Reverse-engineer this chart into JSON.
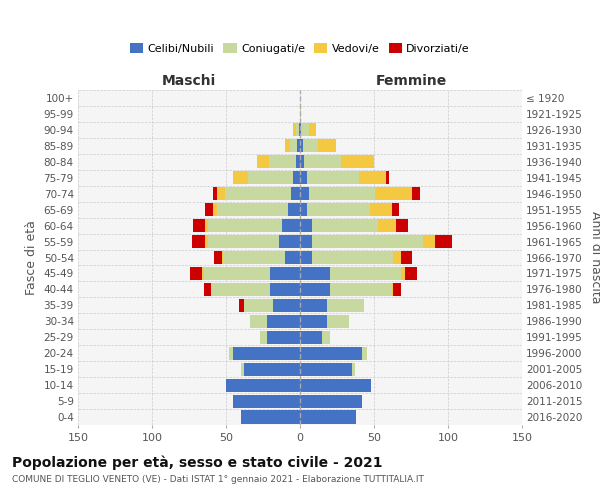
{
  "age_groups": [
    "0-4",
    "5-9",
    "10-14",
    "15-19",
    "20-24",
    "25-29",
    "30-34",
    "35-39",
    "40-44",
    "45-49",
    "50-54",
    "55-59",
    "60-64",
    "65-69",
    "70-74",
    "75-79",
    "80-84",
    "85-89",
    "90-94",
    "95-99",
    "100+"
  ],
  "birth_years": [
    "2016-2020",
    "2011-2015",
    "2006-2010",
    "2001-2005",
    "1996-2000",
    "1991-1995",
    "1986-1990",
    "1981-1985",
    "1976-1980",
    "1971-1975",
    "1966-1970",
    "1961-1965",
    "1956-1960",
    "1951-1955",
    "1946-1950",
    "1941-1945",
    "1936-1940",
    "1931-1935",
    "1926-1930",
    "1921-1925",
    "≤ 1920"
  ],
  "maschi_celibi": [
    40,
    45,
    50,
    38,
    45,
    22,
    22,
    18,
    20,
    20,
    10,
    14,
    12,
    8,
    6,
    5,
    3,
    2,
    1,
    0,
    0
  ],
  "maschi_coniugati": [
    0,
    0,
    0,
    2,
    3,
    5,
    12,
    20,
    40,
    45,
    42,
    48,
    50,
    48,
    45,
    30,
    18,
    5,
    2,
    0,
    0
  ],
  "maschi_vedovi": [
    0,
    0,
    0,
    0,
    0,
    0,
    0,
    0,
    0,
    1,
    1,
    2,
    2,
    3,
    5,
    10,
    8,
    3,
    2,
    0,
    0
  ],
  "maschi_divorziati": [
    0,
    0,
    0,
    0,
    0,
    0,
    0,
    3,
    5,
    8,
    5,
    9,
    8,
    5,
    3,
    0,
    0,
    0,
    0,
    0,
    0
  ],
  "femmine_celibi": [
    38,
    42,
    48,
    35,
    42,
    15,
    18,
    18,
    20,
    20,
    8,
    8,
    8,
    5,
    6,
    5,
    3,
    2,
    1,
    0,
    0
  ],
  "femmine_coniugati": [
    0,
    0,
    0,
    2,
    3,
    5,
    15,
    25,
    42,
    48,
    55,
    75,
    45,
    42,
    45,
    35,
    25,
    10,
    5,
    1,
    0
  ],
  "femmine_vedovi": [
    0,
    0,
    0,
    0,
    0,
    0,
    0,
    0,
    1,
    3,
    5,
    8,
    12,
    15,
    25,
    18,
    22,
    12,
    5,
    0,
    0
  ],
  "femmine_divorziati": [
    0,
    0,
    0,
    0,
    0,
    0,
    0,
    0,
    5,
    8,
    8,
    12,
    8,
    5,
    5,
    2,
    0,
    0,
    0,
    0,
    0
  ],
  "color_celibi": "#4472C4",
  "color_coniugati": "#c8d9a0",
  "color_vedovi": "#f5c842",
  "color_divorziati": "#cc0000",
  "title": "Popolazione per età, sesso e stato civile - 2021",
  "subtitle": "COMUNE DI TEGLIO VENETO (VE) - Dati ISTAT 1° gennaio 2021 - Elaborazione TUTTITALIA.IT",
  "xlabel_left": "Maschi",
  "xlabel_right": "Femmine",
  "ylabel_left": "Fasce di età",
  "ylabel_right": "Anni di nascita",
  "xlim": 150,
  "bg_color": "#f5f5f5",
  "grid_color": "#cccccc"
}
